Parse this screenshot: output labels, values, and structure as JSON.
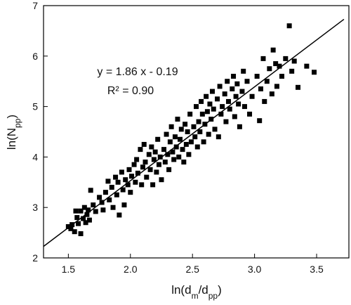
{
  "chart_data": {
    "type": "scatter",
    "annotations": [
      "y = 1.86 x - 0.19",
      "R² = 0.90"
    ],
    "xlabel_parts": [
      {
        "text": "ln(d"
      },
      {
        "text": "m",
        "sub": true
      },
      {
        "text": "/d"
      },
      {
        "text": "pp",
        "sub": true
      },
      {
        "text": ")"
      }
    ],
    "ylabel_parts": [
      {
        "text": "ln(N"
      },
      {
        "text": "pp",
        "sub": true
      },
      {
        "text": ")"
      }
    ],
    "xlim": [
      1.3,
      3.76
    ],
    "ylim": [
      2,
      7
    ],
    "xticks": [
      {
        "value": 1.5,
        "label": "1.5"
      },
      {
        "value": 2,
        "label": "2.0"
      },
      {
        "value": 2.5,
        "label": "2.5"
      },
      {
        "value": 3,
        "label": "3.0"
      },
      {
        "value": 3.5,
        "label": "3.5"
      }
    ],
    "yticks": [
      2,
      3,
      4,
      5,
      6,
      7
    ],
    "color": "#000000",
    "fit": {
      "slope": 1.86,
      "intercept": -0.19,
      "x": [
        1.3,
        3.72
      ],
      "color": "#000000"
    },
    "x": [
      1.5,
      1.52,
      1.53,
      1.55,
      1.56,
      1.57,
      1.58,
      1.6,
      1.6,
      1.62,
      1.63,
      1.64,
      1.65,
      1.66,
      1.67,
      1.68,
      1.7,
      1.72,
      1.75,
      1.77,
      1.78,
      1.8,
      1.82,
      1.83,
      1.85,
      1.86,
      1.88,
      1.89,
      1.9,
      1.91,
      1.93,
      1.94,
      1.95,
      1.96,
      1.98,
      1.99,
      2.0,
      2.01,
      2.03,
      2.04,
      2.05,
      2.06,
      2.08,
      2.09,
      2.1,
      2.11,
      2.12,
      2.13,
      2.15,
      2.16,
      2.17,
      2.18,
      2.19,
      2.2,
      2.21,
      2.22,
      2.23,
      2.24,
      2.25,
      2.27,
      2.28,
      2.29,
      2.3,
      2.31,
      2.32,
      2.33,
      2.34,
      2.35,
      2.36,
      2.37,
      2.38,
      2.39,
      2.4,
      2.41,
      2.42,
      2.43,
      2.44,
      2.45,
      2.46,
      2.47,
      2.48,
      2.49,
      2.51,
      2.52,
      2.53,
      2.54,
      2.55,
      2.56,
      2.57,
      2.58,
      2.59,
      2.6,
      2.61,
      2.62,
      2.63,
      2.64,
      2.65,
      2.66,
      2.67,
      2.68,
      2.7,
      2.71,
      2.72,
      2.73,
      2.74,
      2.76,
      2.77,
      2.78,
      2.79,
      2.8,
      2.82,
      2.83,
      2.84,
      2.85,
      2.86,
      2.87,
      2.88,
      2.9,
      2.91,
      2.92,
      2.94,
      2.96,
      2.98,
      3.02,
      3.04,
      3.05,
      3.07,
      3.08,
      3.1,
      3.12,
      3.14,
      3.15,
      3.17,
      3.18,
      3.2,
      3.22,
      3.25,
      3.28,
      3.3,
      3.32,
      3.35,
      3.42,
      3.48
    ],
    "values": [
      2.62,
      2.58,
      2.66,
      2.52,
      2.93,
      2.8,
      2.68,
      2.48,
      2.93,
      2.78,
      3.0,
      2.7,
      2.86,
      2.95,
      2.75,
      3.34,
      3.05,
      2.92,
      3.2,
      3.1,
      2.95,
      3.3,
      3.52,
      3.15,
      3.4,
      3.0,
      3.6,
      3.25,
      3.5,
      2.85,
      3.7,
      3.35,
      3.05,
      3.55,
      3.45,
      3.75,
      3.3,
      3.62,
      3.85,
      3.5,
      3.95,
      3.68,
      4.15,
      3.45,
      3.8,
      4.25,
      3.9,
      3.6,
      4.05,
      3.75,
      4.2,
      3.45,
      3.95,
      4.1,
      3.7,
      4.35,
      3.85,
      4.0,
      3.55,
      4.15,
      3.9,
      4.45,
      4.05,
      3.75,
      4.3,
      4.6,
      4.1,
      3.95,
      4.4,
      4.2,
      4.75,
      4.0,
      4.35,
      4.55,
      4.15,
      3.9,
      4.65,
      4.25,
      4.5,
      4.05,
      4.85,
      4.3,
      4.6,
      4.4,
      5.0,
      4.2,
      4.7,
      4.5,
      5.1,
      4.85,
      4.3,
      4.65,
      5.2,
      4.9,
      4.45,
      5.05,
      4.75,
      5.3,
      4.95,
      4.55,
      5.15,
      4.4,
      5.4,
      4.85,
      5.0,
      5.25,
      4.7,
      5.5,
      5.1,
      4.95,
      5.35,
      5.6,
      4.8,
      5.2,
      5.45,
      5.05,
      4.6,
      5.3,
      5.7,
      5.0,
      5.5,
      4.85,
      5.2,
      5.6,
      4.72,
      5.35,
      5.95,
      5.1,
      5.5,
      5.75,
      5.25,
      6.12,
      5.85,
      5.4,
      5.8,
      5.6,
      5.95,
      6.6,
      5.7,
      5.9,
      5.38,
      5.8,
      5.68
    ]
  }
}
